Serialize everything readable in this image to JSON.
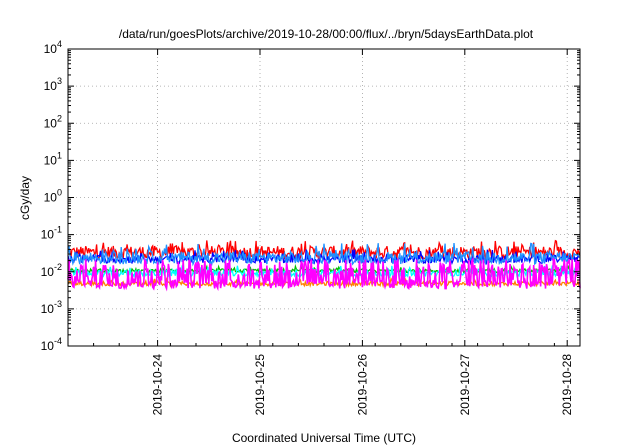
{
  "chart_data": {
    "type": "line",
    "title": "/data/run/goesPlots/archive/2019-10-28/00:00/flux/../bryn/5daysEarthData.plot",
    "xlabel": "Coordinated Universal Time (UTC)",
    "ylabel": "cGy/day",
    "yscale": "log",
    "ylim": [
      0.0001,
      10000
    ],
    "xlim": [
      "2019-10-23T03:00",
      "2019-10-28T03:00"
    ],
    "x_ticks": [
      "2019-10-24",
      "2019-10-25",
      "2019-10-26",
      "2019-10-27",
      "2019-10-28"
    ],
    "y_ticks": [
      {
        "base": "10",
        "exp": "4",
        "value": 10000
      },
      {
        "base": "10",
        "exp": "3",
        "value": 1000
      },
      {
        "base": "10",
        "exp": "2",
        "value": 100
      },
      {
        "base": "10",
        "exp": "1",
        "value": 10
      },
      {
        "base": "10",
        "exp": "0",
        "value": 1
      },
      {
        "base": "10",
        "exp": "-1",
        "value": 0.1
      },
      {
        "base": "10",
        "exp": "-2",
        "value": 0.01
      },
      {
        "base": "10",
        "exp": "-3",
        "value": 0.001
      },
      {
        "base": "10",
        "exp": "-4",
        "value": 0.0001
      }
    ],
    "grid": true,
    "series": [
      {
        "color": "#ff0000",
        "low": 0.022,
        "high": 0.05,
        "spike": 0.07
      },
      {
        "color": "#ff8000",
        "low": 0.0042,
        "high": 0.0055,
        "spike": 0.0065
      },
      {
        "color": "#00c000",
        "low": 0.0095,
        "high": 0.012,
        "spike": 0.014
      },
      {
        "color": "#00ffff",
        "low": 0.0075,
        "high": 0.011,
        "spike": 0.015
      },
      {
        "color": "#0000ff",
        "low": 0.017,
        "high": 0.028,
        "spike": 0.04
      },
      {
        "color": "#1e90ff",
        "low": 0.016,
        "high": 0.035,
        "spike": 0.06
      },
      {
        "color": "#ff00ff",
        "low": 0.0035,
        "high": 0.022,
        "spike": 0.03
      }
    ]
  }
}
